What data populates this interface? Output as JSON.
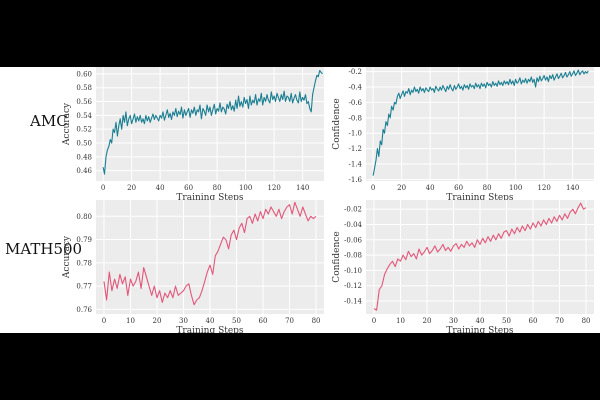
{
  "row_labels": [
    "AMC",
    "MATH500"
  ],
  "colors": {
    "teal": "#1a7f92",
    "pink": "#e2577a",
    "panel_bg": "#ececec",
    "grid": "#ffffff",
    "frame_bg": "#000000"
  },
  "chart_data": [
    {
      "type": "line",
      "row": "AMC",
      "xlabel": "Training Steps",
      "ylabel": "Accuracy",
      "xlim": [
        -5,
        155
      ],
      "ylim": [
        0.445,
        0.61
      ],
      "xticks": [
        0,
        20,
        40,
        60,
        80,
        100,
        120,
        140
      ],
      "yticks": [
        0.46,
        0.48,
        0.5,
        0.52,
        0.54,
        0.56,
        0.58,
        0.6
      ],
      "ytick_labels": [
        "0.46",
        "0.48",
        "0.50",
        "0.52",
        "0.54",
        "0.56",
        "0.58",
        "0.60"
      ],
      "grid": true,
      "color": "#1a7f92",
      "x_start": 0,
      "x_step": 1,
      "values": [
        0.465,
        0.455,
        0.48,
        0.49,
        0.495,
        0.505,
        0.5,
        0.52,
        0.515,
        0.53,
        0.51,
        0.525,
        0.535,
        0.52,
        0.54,
        0.53,
        0.545,
        0.525,
        0.535,
        0.54,
        0.528,
        0.535,
        0.542,
        0.53,
        0.538,
        0.532,
        0.54,
        0.53,
        0.535,
        0.528,
        0.54,
        0.532,
        0.538,
        0.53,
        0.536,
        0.542,
        0.534,
        0.54,
        0.536,
        0.532,
        0.54,
        0.536,
        0.545,
        0.533,
        0.54,
        0.548,
        0.537,
        0.543,
        0.534,
        0.545,
        0.54,
        0.55,
        0.538,
        0.546,
        0.541,
        0.552,
        0.536,
        0.548,
        0.54,
        0.545,
        0.55,
        0.537,
        0.548,
        0.543,
        0.552,
        0.54,
        0.548,
        0.545,
        0.555,
        0.535,
        0.55,
        0.546,
        0.54,
        0.555,
        0.545,
        0.552,
        0.54,
        0.548,
        0.556,
        0.542,
        0.55,
        0.546,
        0.558,
        0.545,
        0.552,
        0.549,
        0.542,
        0.556,
        0.55,
        0.56,
        0.548,
        0.554,
        0.546,
        0.562,
        0.55,
        0.568,
        0.553,
        0.56,
        0.552,
        0.566,
        0.557,
        0.563,
        0.55,
        0.568,
        0.555,
        0.562,
        0.558,
        0.57,
        0.555,
        0.564,
        0.56,
        0.572,
        0.555,
        0.566,
        0.56,
        0.57,
        0.562,
        0.558,
        0.574,
        0.563,
        0.568,
        0.56,
        0.572,
        0.566,
        0.56,
        0.57,
        0.563,
        0.575,
        0.56,
        0.568,
        0.566,
        0.56,
        0.572,
        0.558,
        0.565,
        0.57,
        0.562,
        0.558,
        0.574,
        0.56,
        0.566,
        0.562,
        0.57,
        0.557,
        0.56,
        0.55,
        0.545,
        0.57,
        0.58,
        0.59,
        0.598,
        0.596,
        0.605,
        0.602,
        0.6
      ]
    },
    {
      "type": "line",
      "row": "AMC",
      "xlabel": "Training Steps",
      "ylabel": "Confidence",
      "xlim": [
        -5,
        155
      ],
      "ylim": [
        -1.62,
        -0.14
      ],
      "xticks": [
        0,
        20,
        40,
        60,
        80,
        100,
        120,
        140
      ],
      "yticks": [
        -1.6,
        -1.4,
        -1.2,
        -1.0,
        -0.8,
        -0.6,
        -0.4,
        -0.2
      ],
      "ytick_labels": [
        "-1.6",
        "-1.4",
        "-1.2",
        "-1.0",
        "-0.8",
        "-0.6",
        "-0.4",
        "-0.2"
      ],
      "grid": true,
      "color": "#1a7f92",
      "x_start": 0,
      "x_step": 1,
      "values": [
        -1.55,
        -1.45,
        -1.35,
        -1.2,
        -1.3,
        -1.1,
        -1.15,
        -0.95,
        -1.0,
        -0.85,
        -0.9,
        -0.75,
        -0.8,
        -0.65,
        -0.7,
        -0.6,
        -0.62,
        -0.52,
        -0.48,
        -0.55,
        -0.5,
        -0.45,
        -0.52,
        -0.46,
        -0.48,
        -0.42,
        -0.5,
        -0.44,
        -0.47,
        -0.4,
        -0.46,
        -0.43,
        -0.48,
        -0.4,
        -0.45,
        -0.42,
        -0.47,
        -0.41,
        -0.44,
        -0.46,
        -0.4,
        -0.44,
        -0.42,
        -0.47,
        -0.39,
        -0.43,
        -0.45,
        -0.4,
        -0.44,
        -0.38,
        -0.42,
        -0.46,
        -0.39,
        -0.43,
        -0.37,
        -0.42,
        -0.45,
        -0.38,
        -0.43,
        -0.4,
        -0.36,
        -0.42,
        -0.39,
        -0.44,
        -0.37,
        -0.41,
        -0.38,
        -0.43,
        -0.36,
        -0.4,
        -0.38,
        -0.42,
        -0.35,
        -0.4,
        -0.37,
        -0.42,
        -0.35,
        -0.39,
        -0.36,
        -0.41,
        -0.34,
        -0.38,
        -0.36,
        -0.4,
        -0.33,
        -0.38,
        -0.35,
        -0.39,
        -0.32,
        -0.37,
        -0.34,
        -0.38,
        -0.32,
        -0.36,
        -0.33,
        -0.37,
        -0.3,
        -0.36,
        -0.32,
        -0.38,
        -0.3,
        -0.35,
        -0.33,
        -0.28,
        -0.36,
        -0.31,
        -0.34,
        -0.29,
        -0.35,
        -0.3,
        -0.33,
        -0.27,
        -0.34,
        -0.3,
        -0.4,
        -0.28,
        -0.33,
        -0.26,
        -0.32,
        -0.29,
        -0.25,
        -0.31,
        -0.27,
        -0.33,
        -0.25,
        -0.29,
        -0.24,
        -0.31,
        -0.27,
        -0.23,
        -0.29,
        -0.26,
        -0.22,
        -0.28,
        -0.25,
        -0.21,
        -0.27,
        -0.24,
        -0.2,
        -0.26,
        -0.23,
        -0.19,
        -0.25,
        -0.22,
        -0.18,
        -0.24,
        -0.21,
        -0.19,
        -0.23,
        -0.2,
        -0.22,
        -0.19
      ]
    },
    {
      "type": "line",
      "row": "MATH500",
      "xlabel": "Training Steps",
      "ylabel": "Accuracy",
      "xlim": [
        -3,
        83
      ],
      "ylim": [
        0.758,
        0.807
      ],
      "xticks": [
        0,
        10,
        20,
        30,
        40,
        50,
        60,
        70,
        80
      ],
      "yticks": [
        0.76,
        0.77,
        0.78,
        0.79,
        0.8
      ],
      "ytick_labels": [
        "0.76",
        "0.77",
        "0.78",
        "0.79",
        "0.80"
      ],
      "grid": true,
      "color": "#e2577a",
      "x_start": 0,
      "x_step": 1,
      "values": [
        0.772,
        0.764,
        0.776,
        0.768,
        0.773,
        0.769,
        0.775,
        0.771,
        0.774,
        0.766,
        0.773,
        0.77,
        0.772,
        0.776,
        0.769,
        0.778,
        0.774,
        0.77,
        0.766,
        0.77,
        0.765,
        0.768,
        0.763,
        0.767,
        0.765,
        0.768,
        0.765,
        0.77,
        0.766,
        0.767,
        0.768,
        0.77,
        0.771,
        0.766,
        0.762,
        0.764,
        0.765,
        0.768,
        0.772,
        0.776,
        0.779,
        0.775,
        0.783,
        0.785,
        0.788,
        0.791,
        0.79,
        0.786,
        0.792,
        0.794,
        0.79,
        0.795,
        0.797,
        0.793,
        0.799,
        0.8,
        0.797,
        0.801,
        0.798,
        0.802,
        0.799,
        0.803,
        0.801,
        0.804,
        0.802,
        0.8,
        0.803,
        0.799,
        0.802,
        0.804,
        0.805,
        0.801,
        0.806,
        0.803,
        0.8,
        0.804,
        0.801,
        0.798,
        0.8,
        0.799,
        0.8
      ]
    },
    {
      "type": "line",
      "row": "MATH500",
      "xlabel": "Training Steps",
      "ylabel": "Confidence",
      "xlim": [
        -3,
        83
      ],
      "ylim": [
        -0.157,
        -0.008
      ],
      "xticks": [
        0,
        10,
        20,
        30,
        40,
        50,
        60,
        70,
        80
      ],
      "yticks": [
        -0.14,
        -0.12,
        -0.1,
        -0.08,
        -0.06,
        -0.04,
        -0.02
      ],
      "ytick_labels": [
        "-0.14",
        "-0.12",
        "-0.10",
        "-0.08",
        "-0.06",
        "-0.04",
        "-0.02"
      ],
      "grid": true,
      "color": "#e2577a",
      "x_start": 0,
      "x_step": 1,
      "values": [
        -0.15,
        -0.152,
        -0.125,
        -0.12,
        -0.105,
        -0.098,
        -0.092,
        -0.088,
        -0.095,
        -0.085,
        -0.088,
        -0.08,
        -0.086,
        -0.075,
        -0.082,
        -0.078,
        -0.085,
        -0.072,
        -0.08,
        -0.076,
        -0.07,
        -0.078,
        -0.074,
        -0.068,
        -0.076,
        -0.072,
        -0.066,
        -0.074,
        -0.07,
        -0.075,
        -0.068,
        -0.065,
        -0.072,
        -0.066,
        -0.07,
        -0.062,
        -0.068,
        -0.064,
        -0.07,
        -0.06,
        -0.066,
        -0.058,
        -0.064,
        -0.056,
        -0.062,
        -0.054,
        -0.06,
        -0.052,
        -0.058,
        -0.05,
        -0.048,
        -0.055,
        -0.046,
        -0.052,
        -0.044,
        -0.05,
        -0.042,
        -0.048,
        -0.04,
        -0.046,
        -0.038,
        -0.044,
        -0.036,
        -0.042,
        -0.034,
        -0.04,
        -0.032,
        -0.038,
        -0.03,
        -0.036,
        -0.028,
        -0.034,
        -0.026,
        -0.032,
        -0.024,
        -0.02,
        -0.026,
        -0.018,
        -0.012,
        -0.02,
        -0.018
      ]
    }
  ]
}
